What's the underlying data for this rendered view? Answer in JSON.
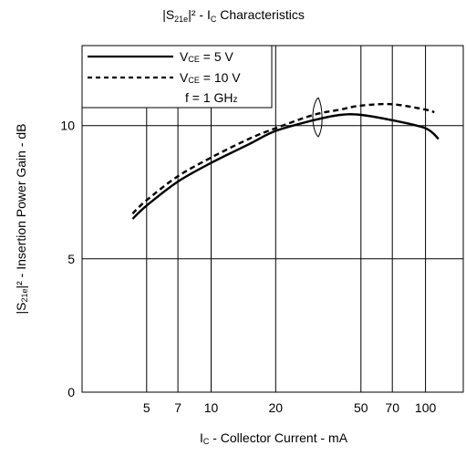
{
  "chart_data": {
    "type": "line",
    "title": {
      "pre": "|S",
      "sub": "21e",
      "post": "|² - I",
      "sub2": "C",
      "post2": " Characteristics"
    },
    "xlabel": {
      "pre": "I",
      "sub": "C",
      "post": " - Collector Current - mA"
    },
    "ylabel": {
      "pre": "|S",
      "sub": "21e",
      "post": "|² - Insertion Power Gain - dB"
    },
    "x_scale": "log",
    "xlim": [
      2.5,
      150
    ],
    "ylim": [
      0,
      13
    ],
    "x_ticks": [
      5,
      7,
      10,
      20,
      50,
      70,
      100
    ],
    "x_tick_labels": [
      "5",
      "7",
      "10",
      "20",
      "50",
      "70",
      "100"
    ],
    "y_ticks": [
      0,
      5,
      10
    ],
    "y_tick_labels": [
      "0",
      "5",
      "10"
    ],
    "grid": true,
    "legend_position": "top-left",
    "legend_note": {
      "pre": "f = 1 GH",
      "sub": "z"
    },
    "series": [
      {
        "name": {
          "pre": "V",
          "sub": "CE",
          "post": " = 5 V"
        },
        "style": "solid",
        "color": "#000000",
        "x": [
          4.3,
          5,
          7,
          10,
          15,
          20,
          30,
          40,
          50,
          70,
          100,
          115
        ],
        "y": [
          6.5,
          7.0,
          7.9,
          8.6,
          9.3,
          9.8,
          10.2,
          10.4,
          10.4,
          10.2,
          9.9,
          9.5
        ]
      },
      {
        "name": {
          "pre": "V",
          "sub": "CE",
          "post": " = 10 V"
        },
        "style": "dashed",
        "color": "#000000",
        "x": [
          4.3,
          5,
          7,
          10,
          15,
          20,
          30,
          40,
          50,
          70,
          100,
          110
        ],
        "y": [
          6.7,
          7.2,
          8.1,
          8.8,
          9.5,
          9.9,
          10.4,
          10.6,
          10.75,
          10.8,
          10.6,
          10.5
        ]
      }
    ]
  }
}
